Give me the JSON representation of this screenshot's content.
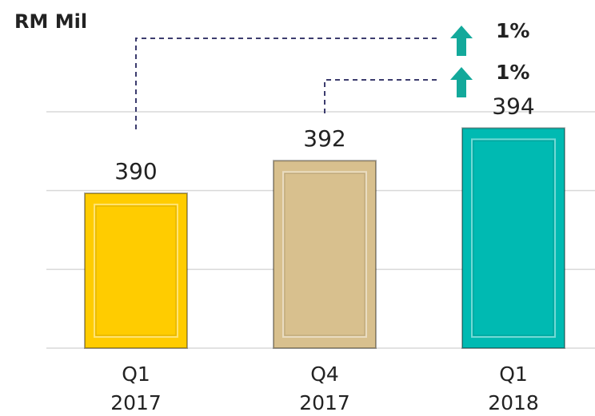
{
  "chart_data": {
    "type": "bar",
    "y_label": "RM Mil",
    "categories": [
      [
        "Q1",
        "2017"
      ],
      [
        "Q4",
        "2017"
      ],
      [
        "Q1",
        "2018"
      ]
    ],
    "values": [
      390,
      392,
      394
    ],
    "colors": [
      "#ffcc00",
      "#d8c08e",
      "#00bab2"
    ],
    "ylim": [
      380.5,
      395
    ],
    "grid": true,
    "annotations": [
      {
        "text": "1%",
        "from": 0
      },
      {
        "text": "1%",
        "from": 1
      }
    ],
    "annotation_color": "#13a99b"
  }
}
